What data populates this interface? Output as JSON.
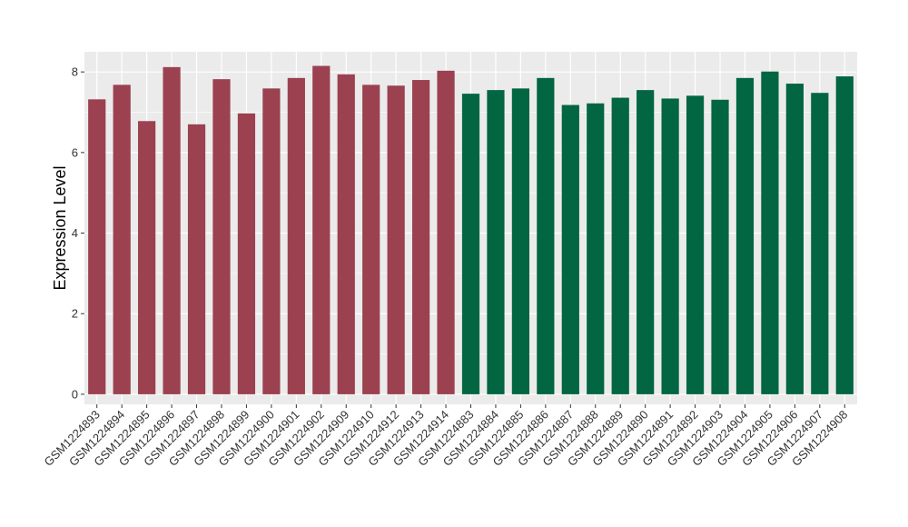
{
  "chart_data": {
    "type": "bar",
    "ylabel": "Expression Level",
    "xlabel": "",
    "ylim": [
      -0.25,
      8.5
    ],
    "yticks": [
      0,
      2,
      4,
      6,
      8
    ],
    "grid": true,
    "panel_background": "#EBEBEB",
    "colors": {
      "group1": "#9B4150",
      "group2": "#036642"
    },
    "categories": [
      "GSM1224893",
      "GSM1224894",
      "GSM1224895",
      "GSM1224896",
      "GSM1224897",
      "GSM1224898",
      "GSM1224899",
      "GSM1224900",
      "GSM1224901",
      "GSM1224902",
      "GSM1224909",
      "GSM1224910",
      "GSM1224912",
      "GSM1224913",
      "GSM1224914",
      "GSM1224883",
      "GSM1224884",
      "GSM1224885",
      "GSM1224886",
      "GSM1224887",
      "GSM1224888",
      "GSM1224889",
      "GSM1224890",
      "GSM1224891",
      "GSM1224892",
      "GSM1224903",
      "GSM1224904",
      "GSM1224905",
      "GSM1224906",
      "GSM1224907",
      "GSM1224908"
    ],
    "values": [
      7.32,
      7.68,
      6.78,
      8.12,
      6.7,
      7.82,
      6.97,
      7.59,
      7.85,
      8.15,
      7.94,
      7.68,
      7.66,
      7.8,
      8.03,
      7.46,
      7.55,
      7.59,
      7.85,
      7.18,
      7.22,
      7.36,
      7.55,
      7.34,
      7.41,
      7.31,
      7.85,
      8.01,
      7.71,
      7.48,
      7.89
    ],
    "groups": [
      "group1",
      "group1",
      "group1",
      "group1",
      "group1",
      "group1",
      "group1",
      "group1",
      "group1",
      "group1",
      "group1",
      "group1",
      "group1",
      "group1",
      "group1",
      "group2",
      "group2",
      "group2",
      "group2",
      "group2",
      "group2",
      "group2",
      "group2",
      "group2",
      "group2",
      "group2",
      "group2",
      "group2",
      "group2",
      "group2",
      "group2"
    ]
  }
}
